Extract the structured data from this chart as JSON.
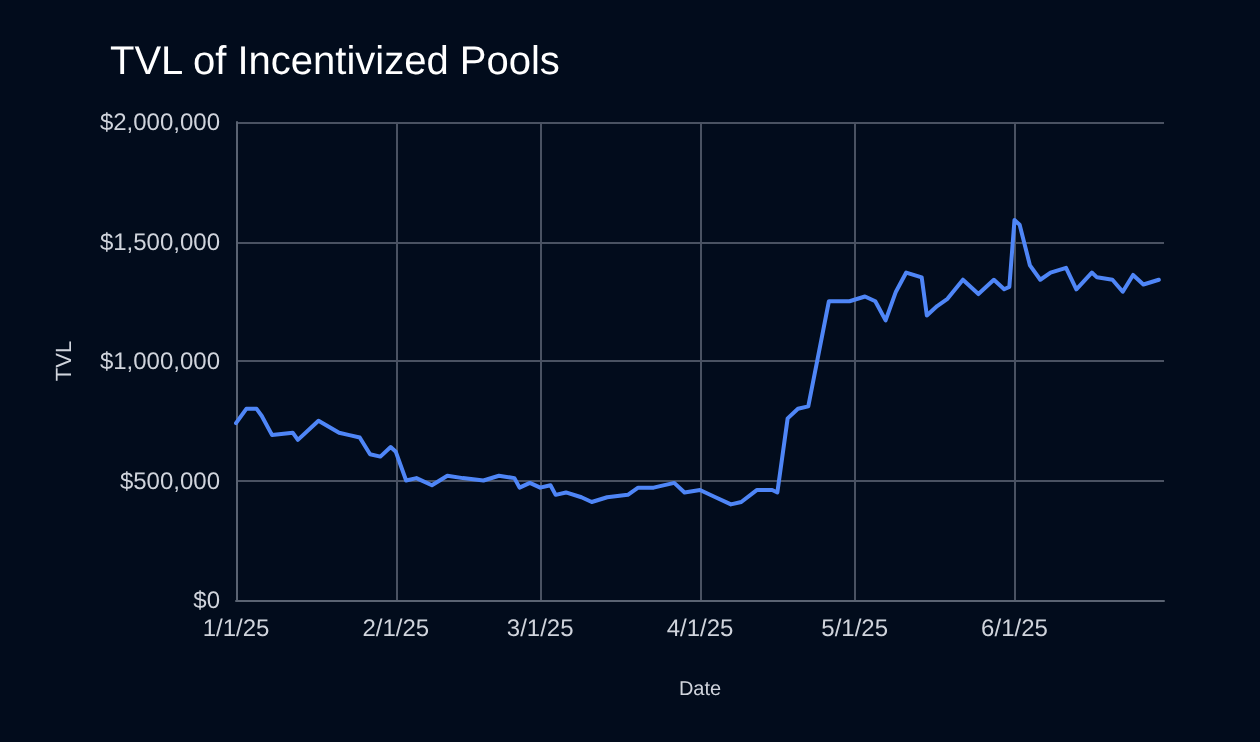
{
  "chart_data": {
    "type": "line",
    "title": "TVL of Incentivized Pools",
    "xlabel": "Date",
    "ylabel": "TVL",
    "x": [
      "2025-01-01",
      "2025-01-03",
      "2025-01-05",
      "2025-01-06",
      "2025-01-08",
      "2025-01-12",
      "2025-01-13",
      "2025-01-17",
      "2025-01-21",
      "2025-01-23",
      "2025-01-25",
      "2025-01-27",
      "2025-01-29",
      "2025-01-31",
      "2025-02-01",
      "2025-02-03",
      "2025-02-05",
      "2025-02-08",
      "2025-02-11",
      "2025-02-14",
      "2025-02-18",
      "2025-02-21",
      "2025-02-24",
      "2025-02-25",
      "2025-02-27",
      "2025-03-01",
      "2025-03-03",
      "2025-03-04",
      "2025-03-06",
      "2025-03-09",
      "2025-03-11",
      "2025-03-14",
      "2025-03-18",
      "2025-03-20",
      "2025-03-23",
      "2025-03-27",
      "2025-03-29",
      "2025-04-01",
      "2025-04-04",
      "2025-04-07",
      "2025-04-09",
      "2025-04-12",
      "2025-04-15",
      "2025-04-16",
      "2025-04-18",
      "2025-04-20",
      "2025-04-22",
      "2025-04-24",
      "2025-04-26",
      "2025-04-28",
      "2025-04-30",
      "2025-05-03",
      "2025-05-05",
      "2025-05-07",
      "2025-05-09",
      "2025-05-11",
      "2025-05-14",
      "2025-05-15",
      "2025-05-17",
      "2025-05-19",
      "2025-05-22",
      "2025-05-25",
      "2025-05-28",
      "2025-05-30",
      "2025-05-31",
      "2025-06-01",
      "2025-06-02",
      "2025-06-04",
      "2025-06-06",
      "2025-06-08",
      "2025-06-11",
      "2025-06-13",
      "2025-06-16",
      "2025-06-17",
      "2025-06-20",
      "2025-06-22",
      "2025-06-24",
      "2025-06-26",
      "2025-06-29"
    ],
    "series": [
      {
        "color": "#4f86f7",
        "values": [
          740000,
          800000,
          800000,
          770000,
          690000,
          700000,
          670000,
          750000,
          700000,
          690000,
          680000,
          610000,
          600000,
          640000,
          620000,
          500000,
          510000,
          480000,
          520000,
          510000,
          500000,
          520000,
          510000,
          470000,
          490000,
          470000,
          480000,
          440000,
          450000,
          430000,
          410000,
          430000,
          440000,
          470000,
          470000,
          490000,
          450000,
          460000,
          430000,
          400000,
          410000,
          460000,
          460000,
          450000,
          760000,
          800000,
          810000,
          1030000,
          1250000,
          1250000,
          1250000,
          1270000,
          1250000,
          1170000,
          1290000,
          1370000,
          1350000,
          1190000,
          1230000,
          1260000,
          1340000,
          1280000,
          1340000,
          1300000,
          1310000,
          1590000,
          1570000,
          1400000,
          1340000,
          1370000,
          1390000,
          1300000,
          1370000,
          1350000,
          1340000,
          1290000,
          1360000,
          1320000,
          1340000
        ]
      }
    ],
    "xlim": [
      "2025-01-01",
      "2025-06-30"
    ],
    "xticks": [
      {
        "value": "2025-01-01",
        "label": "1/1/25"
      },
      {
        "value": "2025-02-01",
        "label": "2/1/25"
      },
      {
        "value": "2025-03-01",
        "label": "3/1/25"
      },
      {
        "value": "2025-04-01",
        "label": "4/1/25"
      },
      {
        "value": "2025-05-01",
        "label": "5/1/25"
      },
      {
        "value": "2025-06-01",
        "label": "6/1/25"
      }
    ],
    "ylim": [
      0,
      2000000
    ],
    "yticks": [
      {
        "value": 0,
        "label": "$0"
      },
      {
        "value": 500000,
        "label": "$500,000"
      },
      {
        "value": 1000000,
        "label": "$1,000,000"
      },
      {
        "value": 1500000,
        "label": "$1,500,000"
      },
      {
        "value": 2000000,
        "label": "$2,000,000"
      }
    ],
    "grid": true,
    "marker": "none",
    "line_style": "solid"
  }
}
